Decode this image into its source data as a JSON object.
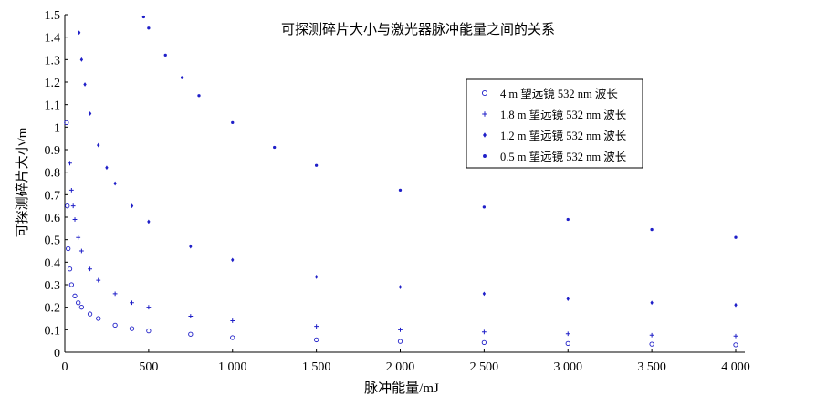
{
  "chart_data": {
    "type": "scatter",
    "title": "可探测碎片大小与激光器脉冲能量之间的关系",
    "xlabel": "脉冲能量/mJ",
    "ylabel": "可探测碎片大小/m",
    "xlim": [
      0,
      4000
    ],
    "ylim": [
      0,
      1.5
    ],
    "x_ticks": [
      "0",
      "500",
      "1 000",
      "1 500",
      "2 000",
      "2 500",
      "3 000",
      "3 500",
      "4 000"
    ],
    "y_ticks": [
      "0",
      "0.1",
      "0.2",
      "0.3",
      "0.4",
      "0.5",
      "0.6",
      "0.7",
      "0.8",
      "0.9",
      "1",
      "1.1",
      "1.2",
      "1.3",
      "1.4",
      "1.5"
    ],
    "grid": false,
    "legend_position": "upper-right",
    "series": [
      {
        "name": "4 m 望远镜 532 nm 波长",
        "marker": "circle",
        "color": "#1f1fc8",
        "x": [
          10,
          15,
          20,
          30,
          40,
          60,
          80,
          100,
          150,
          200,
          300,
          400,
          500,
          750,
          1000,
          1500,
          2000,
          2500,
          3000,
          3500,
          4000
        ],
        "y": [
          1.02,
          0.65,
          0.46,
          0.37,
          0.3,
          0.25,
          0.22,
          0.2,
          0.17,
          0.15,
          0.12,
          0.105,
          0.095,
          0.08,
          0.065,
          0.055,
          0.048,
          0.043,
          0.039,
          0.036,
          0.033
        ]
      },
      {
        "name": "1.8 m 望远镜 532 nm 波长",
        "marker": "plus",
        "color": "#1f1fc8",
        "x": [
          30,
          40,
          50,
          60,
          80,
          100,
          150,
          200,
          300,
          400,
          500,
          750,
          1000,
          1500,
          2000,
          2500,
          3000,
          3500,
          4000
        ],
        "y": [
          0.84,
          0.72,
          0.65,
          0.59,
          0.51,
          0.45,
          0.37,
          0.32,
          0.26,
          0.22,
          0.2,
          0.16,
          0.14,
          0.115,
          0.1,
          0.09,
          0.082,
          0.076,
          0.072
        ]
      },
      {
        "name": "1.2 m 望远镜 532 nm 波长",
        "marker": "cross",
        "color": "#1f1fc8",
        "x": [
          85,
          100,
          120,
          150,
          200,
          250,
          300,
          400,
          500,
          750,
          1000,
          1500,
          2000,
          2500,
          3000,
          3500,
          4000
        ],
        "y": [
          1.42,
          1.3,
          1.19,
          1.06,
          0.92,
          0.82,
          0.75,
          0.65,
          0.58,
          0.47,
          0.41,
          0.335,
          0.29,
          0.26,
          0.237,
          0.22,
          0.21
        ]
      },
      {
        "name": "0.5 m 望远镜 532 nm 波长",
        "marker": "dot",
        "color": "#1f1fc8",
        "x": [
          470,
          500,
          600,
          700,
          800,
          1000,
          1250,
          1500,
          2000,
          2500,
          3000,
          3500,
          4000
        ],
        "y": [
          1.49,
          1.44,
          1.32,
          1.22,
          1.14,
          1.02,
          0.91,
          0.83,
          0.72,
          0.645,
          0.59,
          0.545,
          0.51
        ]
      }
    ]
  }
}
